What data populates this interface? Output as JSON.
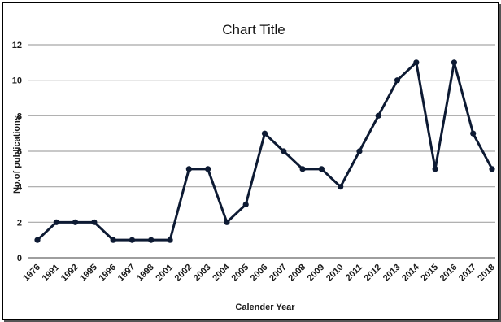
{
  "chart_data": {
    "type": "line",
    "title": "Chart Title",
    "xlabel": "Calender Year",
    "ylabel": "No.of publications",
    "ylim": [
      0,
      12
    ],
    "yticks": [
      0,
      2,
      4,
      6,
      8,
      10,
      12
    ],
    "grid": true,
    "categories": [
      "1976",
      "1991",
      "1992",
      "1995",
      "1996",
      "1997",
      "1998",
      "2001",
      "2002",
      "2003",
      "2004",
      "2005",
      "2006",
      "2007",
      "2008",
      "2009",
      "2010",
      "2011",
      "2012",
      "2013",
      "2014",
      "2015",
      "2016",
      "2017",
      "2018"
    ],
    "series": [
      {
        "values": [
          1,
          2,
          2,
          2,
          1,
          1,
          1,
          1,
          5,
          5,
          2,
          3,
          7,
          6,
          5,
          5,
          4,
          6,
          8,
          10,
          11,
          5,
          11,
          7,
          5
        ]
      }
    ],
    "colors": {
      "line": "#0d1a33",
      "grid": "#a6a6a6",
      "axis": "#7f7f7f"
    }
  }
}
